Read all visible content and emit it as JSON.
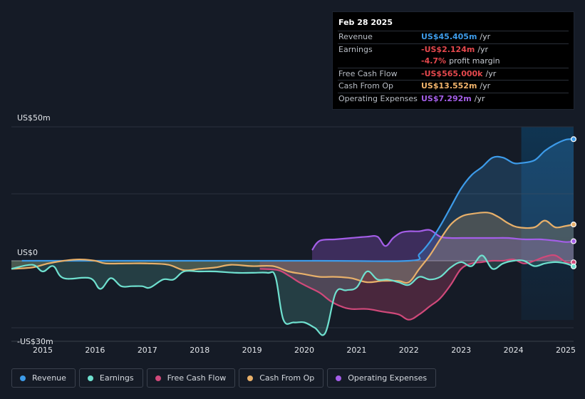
{
  "tooltip": {
    "date": "Feb 28 2025",
    "rows": [
      {
        "name": "Revenue",
        "value": "US$45.405m",
        "unit": "/yr",
        "color": "#3d9be9"
      },
      {
        "name": "Earnings",
        "value": "-US$2.124m",
        "unit": "/yr",
        "color": "#e5484d"
      },
      {
        "name": "",
        "value": "-4.7%",
        "unit": "profit margin",
        "color": "#e5484d"
      },
      {
        "name": "Free Cash Flow",
        "value": "-US$565.000k",
        "unit": "/yr",
        "color": "#e5484d"
      },
      {
        "name": "Cash From Op",
        "value": "US$13.552m",
        "unit": "/yr",
        "color": "#f2b46b"
      },
      {
        "name": "Operating Expenses",
        "value": "US$7.292m",
        "unit": "/yr",
        "color": "#a45ee8"
      }
    ]
  },
  "legend": [
    {
      "label": "Revenue",
      "color": "#3d9be9"
    },
    {
      "label": "Earnings",
      "color": "#6fe0cf"
    },
    {
      "label": "Free Cash Flow",
      "color": "#d0497a"
    },
    {
      "label": "Cash From Op",
      "color": "#e8b06a"
    },
    {
      "label": "Operating Expenses",
      "color": "#a45ee8"
    }
  ],
  "chart_data": {
    "type": "area",
    "title": "",
    "xlabel": "",
    "ylabel": "",
    "ylim": [
      -30,
      50
    ],
    "xlim": [
      2014.4,
      2025.15
    ],
    "y_labels": [
      "US$50m",
      "US$0",
      "-US$30m"
    ],
    "x_ticks": [
      "2015",
      "2016",
      "2017",
      "2018",
      "2019",
      "2020",
      "2021",
      "2022",
      "2023",
      "2024",
      "2025"
    ],
    "highlight_from": 2024.15,
    "series": [
      {
        "name": "Revenue",
        "color": "#3d9be9",
        "x": [
          2014.6,
          2020.15,
          2022.0,
          2022.2,
          2022.4,
          2022.6,
          2022.8,
          2023.0,
          2023.2,
          2023.4,
          2023.6,
          2023.8,
          2024.0,
          2024.15,
          2024.4,
          2024.6,
          2024.8,
          2025.0,
          2025.15
        ],
        "values": [
          0,
          0,
          0,
          2.5,
          7,
          13,
          20,
          27,
          32,
          35,
          38.5,
          38.5,
          36.5,
          36.5,
          37.5,
          41,
          43.5,
          45.2,
          45.4
        ]
      },
      {
        "name": "Earnings",
        "color": "#6fe0cf",
        "x": [
          2014.4,
          2014.8,
          2015.0,
          2015.2,
          2015.4,
          2015.9,
          2016.1,
          2016.3,
          2016.5,
          2016.7,
          2016.9,
          2017.05,
          2017.3,
          2017.5,
          2017.7,
          2018.0,
          2018.3,
          2018.7,
          2019.0,
          2019.3,
          2019.45,
          2019.6,
          2019.8,
          2020.0,
          2020.2,
          2020.4,
          2020.6,
          2020.8,
          2021.0,
          2021.2,
          2021.4,
          2021.6,
          2021.8,
          2022.0,
          2022.2,
          2022.4,
          2022.6,
          2022.8,
          2023.0,
          2023.2,
          2023.4,
          2023.6,
          2023.8,
          2024.0,
          2024.2,
          2024.4,
          2024.6,
          2024.8,
          2025.0,
          2025.15
        ],
        "values": [
          -3,
          -1.5,
          -4,
          -2,
          -6.5,
          -6.5,
          -10.5,
          -6.5,
          -9.5,
          -9.5,
          -9.5,
          -10,
          -7,
          -7,
          -4,
          -4,
          -4,
          -4.5,
          -4.5,
          -4.5,
          -6,
          -22,
          -23,
          -23,
          -25,
          -27,
          -12,
          -11,
          -10,
          -4,
          -7,
          -7,
          -8,
          -9,
          -6,
          -7,
          -6,
          -2.5,
          -0.5,
          -2,
          2,
          -3,
          -1,
          0,
          0,
          -2,
          -1,
          -0.5,
          -1,
          -2.1
        ]
      },
      {
        "name": "Free Cash Flow",
        "color": "#d0497a",
        "x": [
          2019.15,
          2019.5,
          2019.7,
          2019.9,
          2020.1,
          2020.3,
          2020.5,
          2020.7,
          2020.9,
          2021.2,
          2021.5,
          2021.8,
          2022.0,
          2022.2,
          2022.4,
          2022.6,
          2022.8,
          2023.0,
          2023.2,
          2023.4,
          2023.6,
          2023.8,
          2024.0,
          2024.2,
          2024.4,
          2024.6,
          2024.8,
          2025.0,
          2025.15
        ],
        "values": [
          -3,
          -3.5,
          -5.5,
          -8,
          -10,
          -12,
          -15,
          -17,
          -18,
          -18,
          -19,
          -20,
          -22,
          -20,
          -17,
          -14,
          -9,
          -3,
          -1,
          -0.5,
          0,
          0,
          0.5,
          -1,
          0,
          1.5,
          2,
          -0.5,
          -0.56
        ]
      },
      {
        "name": "Cash From Op",
        "color": "#e8b06a",
        "x": [
          2014.4,
          2014.8,
          2015.1,
          2015.4,
          2015.7,
          2016.0,
          2016.2,
          2016.6,
          2017.0,
          2017.4,
          2017.7,
          2018.0,
          2018.3,
          2018.6,
          2019.0,
          2019.4,
          2019.7,
          2020.0,
          2020.3,
          2020.6,
          2020.9,
          2021.2,
          2021.5,
          2021.8,
          2022.0,
          2022.2,
          2022.4,
          2022.6,
          2022.8,
          2023.0,
          2023.2,
          2023.5,
          2023.7,
          2023.9,
          2024.1,
          2024.4,
          2024.6,
          2024.8,
          2025.0,
          2025.15
        ],
        "values": [
          -3,
          -2.5,
          -1,
          0,
          0.5,
          0,
          -1,
          -1,
          -1,
          -1.5,
          -3.5,
          -3,
          -2.5,
          -1.5,
          -2,
          -2,
          -4,
          -5,
          -6,
          -6,
          -6.5,
          -8,
          -7.5,
          -7.5,
          -8,
          -3,
          2,
          8,
          13.5,
          16.5,
          17.5,
          18,
          16.5,
          14,
          12.5,
          12.5,
          15,
          12.5,
          13,
          13.55
        ]
      },
      {
        "name": "Operating Expenses",
        "color": "#a45ee8",
        "x": [
          2020.15,
          2020.3,
          2020.6,
          2020.9,
          2021.2,
          2021.4,
          2021.55,
          2021.7,
          2021.85,
          2022.0,
          2022.2,
          2022.4,
          2022.6,
          2022.8,
          2023.0,
          2023.3,
          2023.6,
          2023.9,
          2024.2,
          2024.5,
          2024.8,
          2025.0,
          2025.15
        ],
        "values": [
          4,
          7.5,
          8,
          8.5,
          9,
          9,
          5.5,
          8.5,
          10.5,
          11,
          11,
          11.5,
          9,
          8.5,
          8.5,
          8.5,
          8.5,
          8.5,
          8,
          8,
          7.5,
          7,
          7.3
        ]
      }
    ]
  }
}
